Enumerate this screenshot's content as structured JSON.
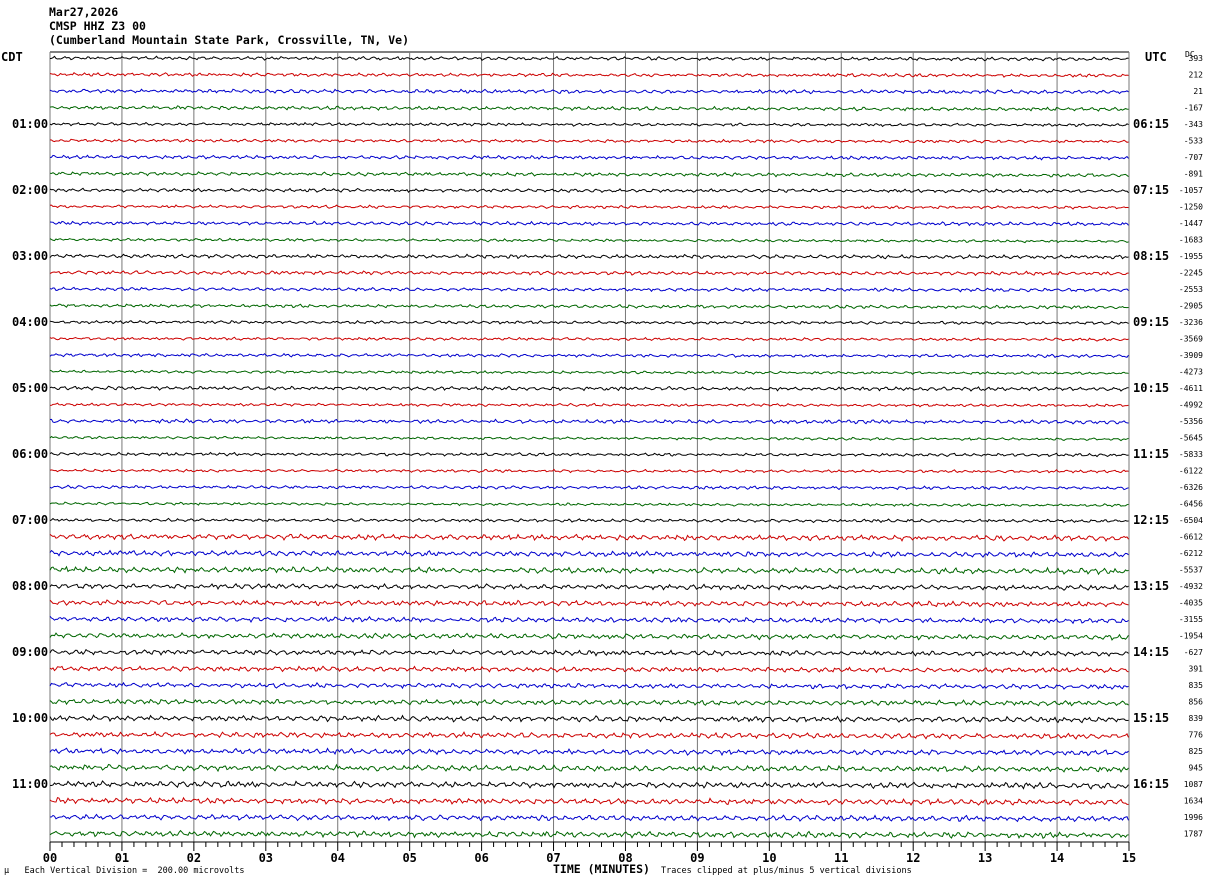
{
  "header": {
    "date": "Mar27,2026",
    "station": "CMSP HHZ Z3 00",
    "location": "(Cumberland Mountain State Park, Crossville, TN, Ve)"
  },
  "left_tz": "CDT",
  "right_tz": "UTC",
  "dc_label": "DC",
  "footer": {
    "scale_note": "Each Vertical Division =  200.00 microvolts",
    "scale_mark": "µ",
    "clip_note": "Traces clipped at plus/minus 5 vertical divisions"
  },
  "colors": {
    "trace_cycle": [
      "#000000",
      "#cc0000",
      "#0000cc",
      "#006600"
    ],
    "grid": "#777777"
  },
  "chart_data": {
    "type": "line",
    "xlabel": "TIME (MINUTES)",
    "xlim": [
      0,
      15
    ],
    "x_ticks": [
      "00",
      "01",
      "02",
      "03",
      "04",
      "05",
      "06",
      "07",
      "08",
      "09",
      "10",
      "11",
      "12",
      "13",
      "14",
      "15"
    ],
    "traces_per_hour": 4,
    "minutes_per_trace": 15,
    "left_hour_labels": [
      "01:00",
      "02:00",
      "03:00",
      "04:00",
      "05:00",
      "06:00",
      "07:00",
      "08:00",
      "09:00",
      "10:00",
      "11:00"
    ],
    "right_hour_labels": [
      "06:15",
      "07:15",
      "08:15",
      "09:15",
      "10:15",
      "11:15",
      "12:15",
      "13:15",
      "14:15",
      "15:15",
      "16:15"
    ],
    "dc_offsets": [
      "393",
      "212",
      "21",
      "-167",
      "-343",
      "-533",
      "-707",
      "-891",
      "-1057",
      "-1250",
      "-1447",
      "-1683",
      "-1955",
      "-2245",
      "-2553",
      "-2905",
      "-3236",
      "-3569",
      "-3909",
      "-4273",
      "-4611",
      "-4992",
      "-5356",
      "-5645",
      "-5833",
      "-6122",
      "-6326",
      "-6456",
      "-6504",
      "-6612",
      "-6212",
      "-5537",
      "-4932",
      "-4035",
      "-3155",
      "-1954",
      "-627",
      "391",
      "835",
      "856",
      "839",
      "776",
      "825",
      "945",
      "1087",
      "1634",
      "1996",
      "1787"
    ]
  }
}
